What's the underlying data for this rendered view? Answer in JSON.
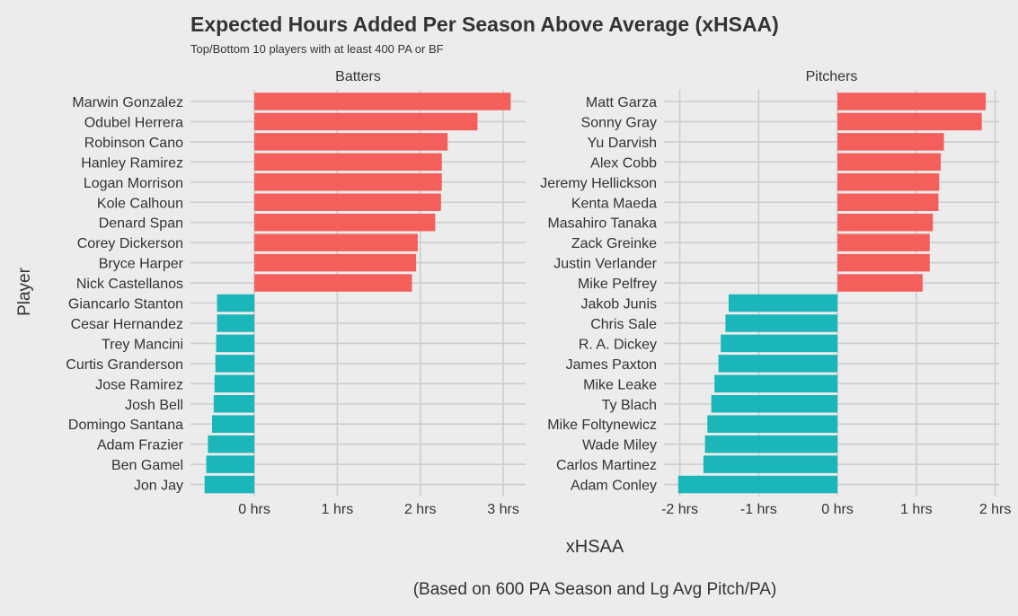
{
  "title": "Expected Hours Added Per Season Above Average (xHSAA)",
  "subtitle": "Top/Bottom 10 players with at least 400 PA or BF",
  "ylabel": "Player",
  "xlabel": "xHSAA",
  "caption": "(Based on 600 PA Season and Lg Avg Pitch/PA)",
  "colors": {
    "positive": "#f55f5b",
    "negative": "#1bb6b9",
    "grid": "#cdcdcd",
    "background": "#ececec"
  },
  "chart_data": [
    {
      "type": "bar",
      "orientation": "horizontal",
      "facet": "Batters",
      "xlim": [
        -0.77,
        3.27
      ],
      "ticks": [
        0,
        1,
        2,
        3
      ],
      "tick_labels": [
        "0 hrs",
        "1 hrs",
        "2 hrs",
        "3 hrs"
      ],
      "grid": true,
      "categories": [
        "Marwin Gonzalez",
        "Odubel Herrera",
        "Robinson Cano",
        "Hanley Ramirez",
        "Logan Morrison",
        "Kole Calhoun",
        "Denard Span",
        "Corey Dickerson",
        "Bryce Harper",
        "Nick Castellanos",
        "Giancarlo Stanton",
        "Cesar Hernandez",
        "Trey Mancini",
        "Curtis Granderson",
        "Jose Ramirez",
        "Josh Bell",
        "Domingo Santana",
        "Adam Frazier",
        "Ben Gamel",
        "Jon Jay"
      ],
      "values": [
        3.09,
        2.69,
        2.33,
        2.26,
        2.26,
        2.25,
        2.18,
        1.97,
        1.95,
        1.9,
        -0.45,
        -0.45,
        -0.46,
        -0.47,
        -0.48,
        -0.49,
        -0.51,
        -0.56,
        -0.58,
        -0.6
      ]
    },
    {
      "type": "bar",
      "orientation": "horizontal",
      "facet": "Pitchers",
      "xlim": [
        -2.2,
        2.05
      ],
      "ticks": [
        -2,
        -1,
        0,
        1,
        2
      ],
      "tick_labels": [
        "-2 hrs",
        "-1 hrs",
        "0 hrs",
        "1 hrs",
        "2 hrs"
      ],
      "grid": true,
      "categories": [
        "Matt Garza",
        "Sonny Gray",
        "Yu Darvish",
        "Alex Cobb",
        "Jeremy Hellickson",
        "Kenta Maeda",
        "Masahiro Tanaka",
        "Zack Greinke",
        "Justin Verlander",
        "Mike Pelfrey",
        "Jakob Junis",
        "Chris Sale",
        "R. A. Dickey",
        "James Paxton",
        "Mike Leake",
        "Ty Blach",
        "Mike Foltynewicz",
        "Wade Miley",
        "Carlos Martinez",
        "Adam Conley"
      ],
      "values": [
        1.88,
        1.83,
        1.35,
        1.31,
        1.29,
        1.28,
        1.21,
        1.17,
        1.17,
        1.08,
        -1.38,
        -1.42,
        -1.48,
        -1.51,
        -1.56,
        -1.6,
        -1.65,
        -1.68,
        -1.7,
        -2.02
      ]
    }
  ]
}
